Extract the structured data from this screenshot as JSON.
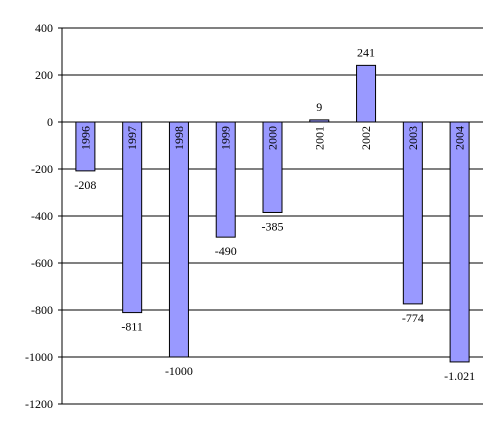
{
  "chart_data": {
    "type": "bar",
    "title": "",
    "xlabel": "",
    "ylabel": "",
    "categories": [
      "1996",
      "1997",
      "1998",
      "1999",
      "2000",
      "2001",
      "2002",
      "2003",
      "2004"
    ],
    "series": [
      {
        "values": [
          -208,
          -811,
          -1000,
          -490,
          -385,
          9,
          241,
          -774,
          -1021
        ],
        "data_labels": [
          "-208",
          "-811",
          "-1000",
          "-490",
          "-385",
          "9",
          "241",
          "-774",
          "-1.021"
        ]
      }
    ],
    "ylim": [
      -1200,
      400
    ],
    "yticks": [
      400,
      200,
      0,
      -200,
      -400,
      -600,
      -800,
      -1000,
      -1200
    ],
    "ytick_labels": [
      "400",
      "200",
      "0",
      "-200",
      "-400",
      "-600",
      "-800",
      "-1000",
      "-1200"
    ],
    "grid": true,
    "legend": "none",
    "colors": {
      "bar_fill": "#9999ff",
      "bar_stroke": "#000000",
      "grid": "#000000"
    }
  }
}
